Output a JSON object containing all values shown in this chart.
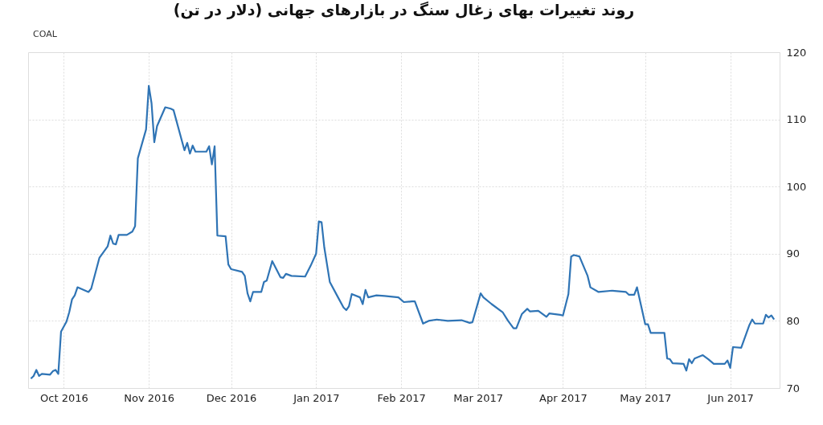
{
  "chart_data": {
    "type": "line",
    "title": "روند تغییرات بهای زغال سنگ در بازارهای جهانی (دلار در تن)",
    "annotations": [
      "COAL"
    ],
    "x": [
      "2016-09-19",
      "2016-09-20",
      "2016-09-21",
      "2016-09-22",
      "2016-09-23",
      "2016-09-26",
      "2016-09-27",
      "2016-09-28",
      "2016-09-29",
      "2016-09-30",
      "2016-10-02",
      "2016-10-03",
      "2016-10-04",
      "2016-10-05",
      "2016-10-06",
      "2016-10-10",
      "2016-10-11",
      "2016-10-14",
      "2016-10-17",
      "2016-10-18",
      "2016-10-19",
      "2016-10-20",
      "2016-10-21",
      "2016-10-24",
      "2016-10-26",
      "2016-10-27",
      "2016-10-28",
      "2016-10-31",
      "2016-11-01",
      "2016-11-02",
      "2016-11-03",
      "2016-11-04",
      "2016-11-07",
      "2016-11-09",
      "2016-11-10",
      "2016-11-14",
      "2016-11-15",
      "2016-11-16",
      "2016-11-17",
      "2016-11-18",
      "2016-11-22",
      "2016-11-23",
      "2016-11-24",
      "2016-11-25",
      "2016-11-26",
      "2016-11-29",
      "2016-11-30",
      "2016-12-01",
      "2016-12-05",
      "2016-12-06",
      "2016-12-07",
      "2016-12-08",
      "2016-12-09",
      "2016-12-12",
      "2016-12-13",
      "2016-12-14",
      "2016-12-16",
      "2016-12-19",
      "2016-12-20",
      "2016-12-21",
      "2016-12-23",
      "2016-12-28",
      "2016-12-30",
      "2017-01-01",
      "2017-01-02",
      "2017-01-03",
      "2017-01-04",
      "2017-01-06",
      "2017-01-09",
      "2017-01-11",
      "2017-01-12",
      "2017-01-13",
      "2017-01-14",
      "2017-01-17",
      "2017-01-18",
      "2017-01-19",
      "2017-01-20",
      "2017-01-23",
      "2017-01-26",
      "2017-01-31",
      "2017-02-02",
      "2017-02-05",
      "2017-02-06",
      "2017-02-09",
      "2017-02-11",
      "2017-02-14",
      "2017-02-18",
      "2017-02-23",
      "2017-02-26",
      "2017-02-27",
      "2017-03-02",
      "2017-03-03",
      "2017-03-06",
      "2017-03-10",
      "2017-03-12",
      "2017-03-14",
      "2017-03-15",
      "2017-03-17",
      "2017-03-19",
      "2017-03-20",
      "2017-03-23",
      "2017-03-26",
      "2017-03-27",
      "2017-03-31",
      "2017-04-01",
      "2017-04-03",
      "2017-04-04",
      "2017-04-05",
      "2017-04-07",
      "2017-04-10",
      "2017-04-11",
      "2017-04-14",
      "2017-04-19",
      "2017-04-24",
      "2017-04-25",
      "2017-04-27",
      "2017-04-28",
      "2017-05-01",
      "2017-05-02",
      "2017-05-03",
      "2017-05-08",
      "2017-05-09",
      "2017-05-10",
      "2017-05-11",
      "2017-05-15",
      "2017-05-16",
      "2017-05-17",
      "2017-05-18",
      "2017-05-19",
      "2017-05-22",
      "2017-05-24",
      "2017-05-26",
      "2017-05-30",
      "2017-05-31",
      "2017-06-01",
      "2017-06-02",
      "2017-06-05",
      "2017-06-08",
      "2017-06-09",
      "2017-06-10",
      "2017-06-13",
      "2017-06-14",
      "2017-06-15",
      "2017-06-16",
      "2017-06-17"
    ],
    "series": [
      {
        "color": "#2f74b5",
        "values": [
          71.4,
          71.8,
          72.7,
          71.8,
          72.1,
          72.0,
          72.5,
          72.7,
          72.1,
          78.4,
          79.9,
          81.3,
          83.2,
          83.8,
          85.0,
          84.3,
          84.8,
          89.4,
          91.1,
          92.7,
          91.5,
          91.4,
          92.8,
          92.8,
          93.3,
          94.1,
          104.2,
          108.5,
          115.0,
          112.4,
          106.6,
          109.0,
          111.8,
          111.6,
          111.4,
          105.4,
          106.5,
          104.9,
          106.1,
          105.2,
          105.2,
          106.0,
          103.3,
          106.0,
          92.7,
          92.6,
          88.4,
          87.7,
          87.3,
          86.7,
          84.1,
          82.9,
          84.3,
          84.3,
          85.8,
          86.0,
          88.9,
          86.5,
          86.4,
          87.0,
          86.7,
          86.6,
          88.2,
          90.0,
          94.8,
          94.7,
          90.9,
          85.8,
          83.5,
          82.0,
          81.6,
          82.2,
          84.0,
          83.5,
          82.5,
          84.6,
          83.5,
          83.8,
          83.7,
          83.5,
          82.8,
          82.9,
          82.9,
          79.6,
          80.0,
          80.2,
          80.0,
          80.1,
          79.7,
          79.8,
          84.1,
          83.5,
          82.5,
          81.3,
          80.0,
          78.9,
          78.9,
          81.0,
          81.8,
          81.4,
          81.5,
          80.6,
          81.1,
          80.9,
          80.8,
          84.0,
          89.6,
          89.8,
          89.6,
          86.7,
          85.0,
          84.3,
          84.5,
          84.3,
          83.9,
          83.9,
          85.0,
          79.5,
          79.5,
          78.2,
          78.2,
          74.4,
          74.3,
          73.7,
          73.6,
          72.6,
          74.3,
          73.7,
          74.4,
          74.9,
          74.3,
          73.6,
          73.6,
          74.1,
          73.0,
          76.1,
          76.0,
          79.4,
          80.2,
          79.6,
          79.6,
          80.9,
          80.5,
          80.8,
          80.2
        ]
      }
    ],
    "xlim": [
      "2016-09-18",
      "2017-06-19"
    ],
    "xticks": [
      {
        "value": "2016-10-01",
        "label": "Oct 2016"
      },
      {
        "value": "2016-11-01",
        "label": "Nov 2016"
      },
      {
        "value": "2016-12-01",
        "label": "Dec 2016"
      },
      {
        "value": "2017-01-01",
        "label": "Jan 2017"
      },
      {
        "value": "2017-02-01",
        "label": "Feb 2017"
      },
      {
        "value": "2017-03-01",
        "label": "Mar 2017"
      },
      {
        "value": "2017-04-01",
        "label": "Apr 2017"
      },
      {
        "value": "2017-05-01",
        "label": "May 2017"
      },
      {
        "value": "2017-06-01",
        "label": "Jun 2017"
      }
    ],
    "ylim": [
      70,
      120
    ],
    "yticks": [
      70,
      80,
      90,
      100,
      110,
      120
    ],
    "grid": true,
    "line_style": "solid",
    "marker": "none"
  }
}
